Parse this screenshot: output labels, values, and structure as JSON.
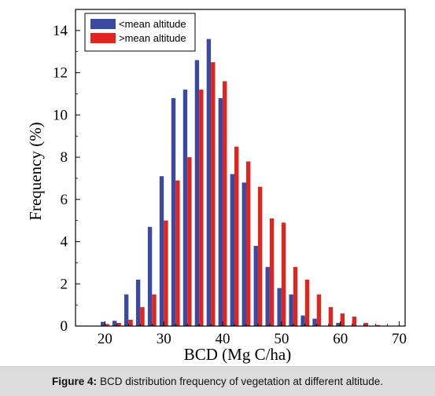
{
  "chart_data": {
    "type": "bar",
    "xlabel": "BCD (Mg C/ha)",
    "ylabel": "Frequency (%)",
    "xlim": [
      15,
      71
    ],
    "ylim": [
      0,
      15
    ],
    "xticks": [
      20,
      30,
      40,
      50,
      60,
      70
    ],
    "yticks": [
      0,
      2,
      4,
      6,
      8,
      10,
      12,
      14
    ],
    "bin_width": 2,
    "legend_position": "top-left",
    "x": [
      20,
      22,
      24,
      26,
      28,
      30,
      32,
      34,
      36,
      38,
      40,
      42,
      44,
      46,
      48,
      50,
      52,
      54,
      56,
      58,
      60,
      62,
      64,
      66,
      68
    ],
    "series": [
      {
        "name": "<mean altitude",
        "color": "#3a4aa0",
        "values": [
          0.2,
          0.25,
          1.5,
          2.2,
          4.7,
          7.1,
          10.8,
          11.2,
          12.6,
          13.6,
          10.8,
          7.2,
          6.8,
          3.8,
          2.8,
          1.8,
          1.5,
          0.5,
          0.35,
          0.0,
          0.15,
          0.0,
          0.0,
          0.0,
          0.0
        ]
      },
      {
        "name": ">mean altitude",
        "color": "#e0241f",
        "values": [
          0.1,
          0.15,
          0.3,
          0.9,
          1.5,
          5.0,
          6.9,
          8.0,
          11.2,
          12.5,
          11.6,
          8.5,
          7.8,
          6.6,
          5.1,
          4.9,
          2.8,
          2.2,
          1.5,
          0.9,
          0.6,
          0.45,
          0.15,
          0.05,
          0.0
        ]
      }
    ]
  },
  "caption": {
    "label": "Figure 4:",
    "text": "BCD distribution frequency of vegetation at different altitude."
  }
}
